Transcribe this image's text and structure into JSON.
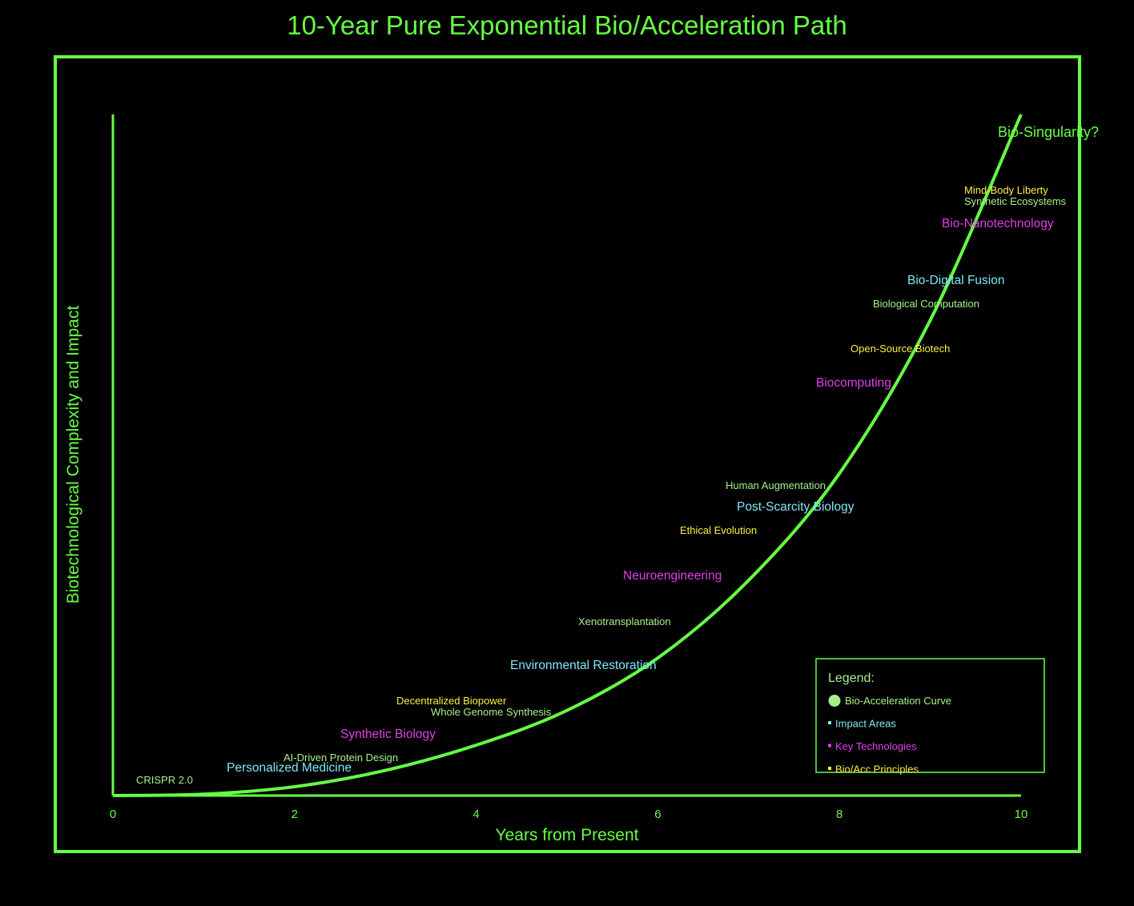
{
  "colors": {
    "background": "#000000",
    "accent": "#66ff44",
    "impact": "#7ee8f5",
    "technology": "#e040e8",
    "principle": "#ffee44",
    "green_label": "#a6f08a"
  },
  "chart_data": {
    "type": "line",
    "title": "10-Year Pure Exponential Bio/Acceleration Path",
    "xlabel": "Years from Present",
    "ylabel": "Biotechnological Complexity and Impact",
    "xlim": [
      0,
      10
    ],
    "x_ticks": [
      "0",
      "2",
      "4",
      "6",
      "8",
      "10"
    ],
    "curve": "exponential",
    "series": [
      {
        "name": "Bio-Acceleration Curve",
        "x": [
          0,
          1,
          2,
          3,
          4,
          5,
          6,
          7,
          8,
          9,
          10
        ],
        "y": [
          0,
          0.2,
          1.3,
          3.7,
          7.4,
          12.5,
          20.2,
          31.6,
          47.3,
          69.8,
          100
        ]
      }
    ],
    "annotations": [
      {
        "text": "CRISPR 2.0",
        "category": "green",
        "size": "small"
      },
      {
        "text": "Personalized Medicine",
        "category": "impact",
        "size": "large"
      },
      {
        "text": "AI-Driven Protein Design",
        "category": "green",
        "size": "small"
      },
      {
        "text": "Synthetic Biology",
        "category": "technology",
        "size": "large"
      },
      {
        "text": "Decentralized Biopower",
        "category": "principle",
        "size": "small"
      },
      {
        "text": "Whole Genome Synthesis",
        "category": "green",
        "size": "small"
      },
      {
        "text": "Environmental Restoration",
        "category": "impact",
        "size": "large"
      },
      {
        "text": "Xenotransplantation",
        "category": "green",
        "size": "small"
      },
      {
        "text": "Neuroengineering",
        "category": "technology",
        "size": "large"
      },
      {
        "text": "Ethical Evolution",
        "category": "principle",
        "size": "small"
      },
      {
        "text": "Post-Scarcity Biology",
        "category": "impact",
        "size": "large"
      },
      {
        "text": "Human Augmentation",
        "category": "green",
        "size": "small"
      },
      {
        "text": "Biocomputing",
        "category": "technology",
        "size": "large"
      },
      {
        "text": "Open-Source Biotech",
        "category": "principle",
        "size": "small"
      },
      {
        "text": "Biological Computation",
        "category": "green",
        "size": "small"
      },
      {
        "text": "Bio-Digital Fusion",
        "category": "impact",
        "size": "large"
      },
      {
        "text": "Bio-Nanotechnology",
        "category": "technology",
        "size": "large"
      },
      {
        "text": "Synthetic Ecosystems",
        "category": "green",
        "size": "small"
      },
      {
        "text": "Mind-Body Liberty",
        "category": "principle",
        "size": "small"
      },
      {
        "text": "Bio-Singularity?",
        "category": "accent",
        "size": "xlarge"
      }
    ],
    "legend": {
      "title": "Legend:",
      "position": "bottom-right",
      "items": [
        {
          "label": "Bio-Acceleration Curve",
          "color": "#a6f08a",
          "marker": "circle"
        },
        {
          "label": "Impact Areas",
          "color": "#7ee8f5",
          "marker": "square"
        },
        {
          "label": "Key Technologies",
          "color": "#e040e8",
          "marker": "square"
        },
        {
          "label": "Bio/Acc Principles",
          "color": "#ffee44",
          "marker": "square"
        }
      ]
    },
    "grid": false
  }
}
